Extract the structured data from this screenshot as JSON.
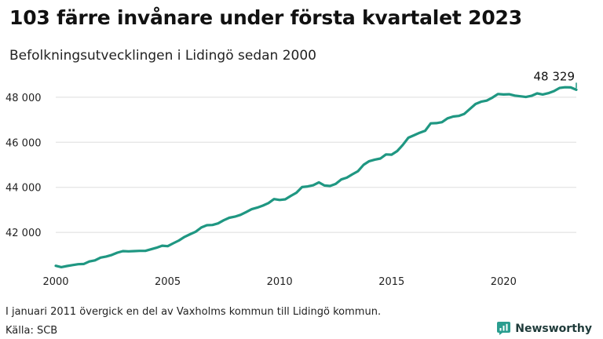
{
  "header": {
    "title": "103 färre invånare under första kvartalet 2023",
    "subtitle": "Befolkningsutvecklingen i Lidingö sedan 2000"
  },
  "footer": {
    "note": "I januari 2011 övergick en del av Vaxholms kommun till Lidingö kommun.",
    "source": "Källa: SCB",
    "brand": "Newsworthy"
  },
  "colors": {
    "line": "#1f9782",
    "grid": "#dddddd",
    "brand": "#2a9d8f"
  },
  "icons": {
    "brand_logo": "newsworthy-logo-icon"
  },
  "chart_data": {
    "type": "line",
    "series": [
      {
        "values": [
          [
            2000.0,
            40520
          ],
          [
            2000.25,
            40460
          ],
          [
            2000.5,
            40510
          ],
          [
            2000.75,
            40550
          ],
          [
            2001.0,
            40590
          ],
          [
            2001.25,
            40600
          ],
          [
            2001.5,
            40710
          ],
          [
            2001.75,
            40760
          ],
          [
            2002.0,
            40880
          ],
          [
            2002.25,
            40930
          ],
          [
            2002.5,
            41000
          ],
          [
            2002.75,
            41100
          ],
          [
            2003.0,
            41170
          ],
          [
            2003.25,
            41160
          ],
          [
            2003.5,
            41170
          ],
          [
            2003.75,
            41180
          ],
          [
            2004.0,
            41180
          ],
          [
            2004.25,
            41250
          ],
          [
            2004.5,
            41320
          ],
          [
            2004.75,
            41410
          ],
          [
            2005.0,
            41390
          ],
          [
            2005.25,
            41520
          ],
          [
            2005.5,
            41640
          ],
          [
            2005.75,
            41800
          ],
          [
            2006.0,
            41920
          ],
          [
            2006.25,
            42030
          ],
          [
            2006.5,
            42220
          ],
          [
            2006.75,
            42320
          ],
          [
            2007.0,
            42330
          ],
          [
            2007.25,
            42400
          ],
          [
            2007.5,
            42540
          ],
          [
            2007.75,
            42650
          ],
          [
            2008.0,
            42700
          ],
          [
            2008.25,
            42780
          ],
          [
            2008.5,
            42900
          ],
          [
            2008.75,
            43030
          ],
          [
            2009.0,
            43100
          ],
          [
            2009.25,
            43190
          ],
          [
            2009.5,
            43300
          ],
          [
            2009.75,
            43480
          ],
          [
            2010.0,
            43440
          ],
          [
            2010.25,
            43470
          ],
          [
            2010.5,
            43620
          ],
          [
            2010.75,
            43760
          ],
          [
            2011.0,
            44010
          ],
          [
            2011.25,
            44040
          ],
          [
            2011.5,
            44090
          ],
          [
            2011.75,
            44220
          ],
          [
            2012.0,
            44080
          ],
          [
            2012.25,
            44060
          ],
          [
            2012.5,
            44150
          ],
          [
            2012.75,
            44350
          ],
          [
            2013.0,
            44430
          ],
          [
            2013.25,
            44580
          ],
          [
            2013.5,
            44720
          ],
          [
            2013.75,
            45000
          ],
          [
            2014.0,
            45160
          ],
          [
            2014.25,
            45230
          ],
          [
            2014.5,
            45280
          ],
          [
            2014.75,
            45460
          ],
          [
            2015.0,
            45450
          ],
          [
            2015.25,
            45610
          ],
          [
            2015.5,
            45880
          ],
          [
            2015.75,
            46200
          ],
          [
            2016.0,
            46310
          ],
          [
            2016.25,
            46420
          ],
          [
            2016.5,
            46510
          ],
          [
            2016.75,
            46840
          ],
          [
            2017.0,
            46850
          ],
          [
            2017.25,
            46890
          ],
          [
            2017.5,
            47060
          ],
          [
            2017.75,
            47140
          ],
          [
            2018.0,
            47170
          ],
          [
            2018.25,
            47260
          ],
          [
            2018.5,
            47480
          ],
          [
            2018.75,
            47700
          ],
          [
            2019.0,
            47800
          ],
          [
            2019.25,
            47850
          ],
          [
            2019.5,
            47980
          ],
          [
            2019.75,
            48140
          ],
          [
            2020.0,
            48120
          ],
          [
            2020.25,
            48130
          ],
          [
            2020.5,
            48070
          ],
          [
            2020.75,
            48040
          ],
          [
            2021.0,
            48010
          ],
          [
            2021.25,
            48060
          ],
          [
            2021.5,
            48170
          ],
          [
            2021.75,
            48120
          ],
          [
            2022.0,
            48180
          ],
          [
            2022.25,
            48270
          ],
          [
            2022.5,
            48410
          ],
          [
            2022.75,
            48440
          ],
          [
            2023.0,
            48432
          ],
          [
            2023.25,
            48329
          ]
        ]
      }
    ],
    "end_label": "48 329",
    "x_ticks": [
      2000,
      2005,
      2010,
      2015,
      2020
    ],
    "y_ticks": [
      42000,
      44000,
      46000,
      48000
    ],
    "y_tick_labels": [
      "42 000",
      "44 000",
      "46 000",
      "48 000"
    ],
    "xlim": [
      2000,
      2023.25
    ],
    "ylim": [
      40300,
      48900
    ],
    "grid": "horizontal",
    "legend": "none"
  }
}
